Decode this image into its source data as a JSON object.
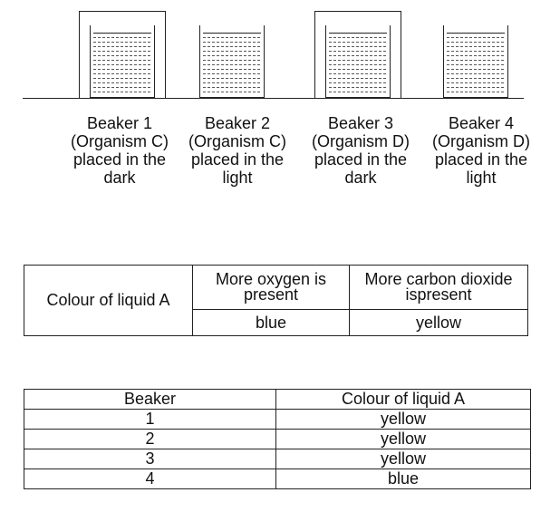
{
  "beakers": [
    {
      "label": "Beaker 1",
      "organism": "(Organism C)",
      "condition_line1": "placed in the",
      "condition_line2": "dark",
      "covered": true
    },
    {
      "label": "Beaker 2",
      "organism": "(Organism C)",
      "condition_line1": "placed in the",
      "condition_line2": "light",
      "covered": false
    },
    {
      "label": "Beaker 3",
      "organism": "(Organism D)",
      "condition_line1": "placed in the",
      "condition_line2": "dark",
      "covered": true
    },
    {
      "label": "Beaker 4",
      "organism": "(Organism D)",
      "condition_line1": "placed in the",
      "condition_line2": "light",
      "covered": false
    }
  ],
  "key_table": {
    "row_header": "Colour of liquid A",
    "col1_line1": "More oxygen is",
    "col1_line2": "present",
    "col2_line1": "More carbon dioxide",
    "col2_line2": "ispresent",
    "col1_value": "blue",
    "col2_value": "yellow"
  },
  "results_table": {
    "headers": [
      "Beaker",
      "Colour of liquid A"
    ],
    "rows": [
      [
        "1",
        "yellow"
      ],
      [
        "2",
        "yellow"
      ],
      [
        "3",
        "yellow"
      ],
      [
        "4",
        "blue"
      ]
    ]
  }
}
